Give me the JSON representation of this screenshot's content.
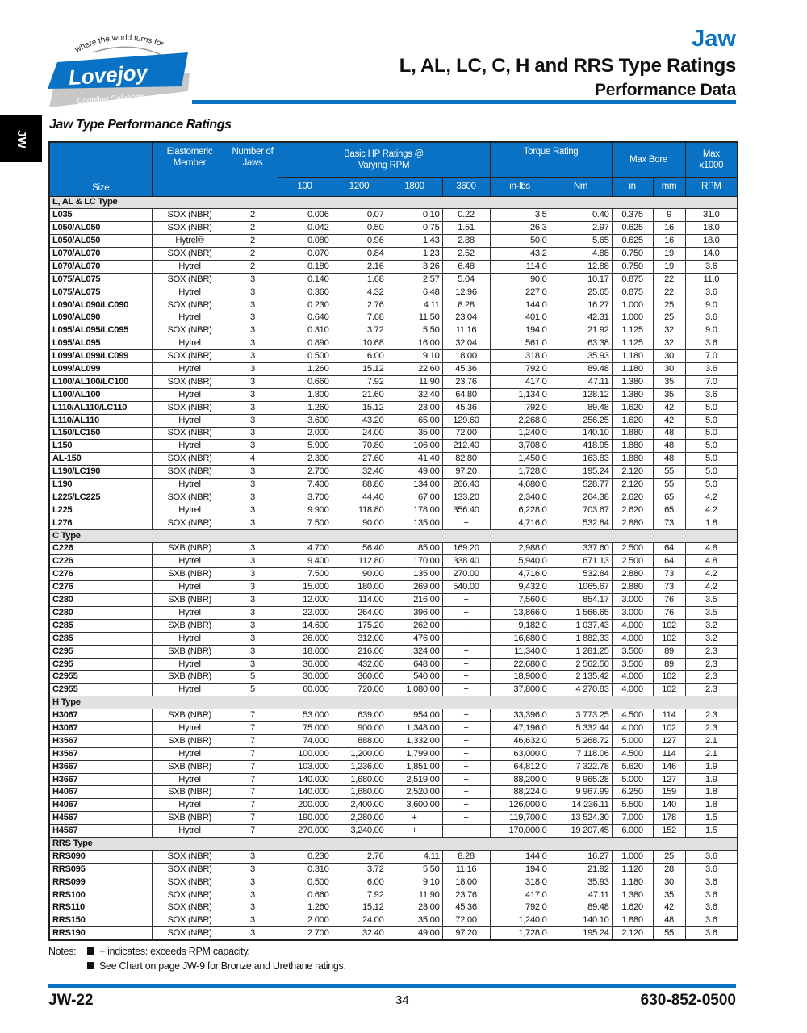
{
  "header": {
    "logo": {
      "tagline": "where the world turns for",
      "brand": "Lovejoy",
      "subtitle": "Coupling Solutions"
    },
    "category": "Jaw",
    "title": "L, AL, LC, C, H and RRS Type Ratings",
    "subtitle": "Performance Data",
    "side_tab": "JW",
    "accent_color": "#0a72c4"
  },
  "section_title": "Jaw Type Performance Ratings",
  "table": {
    "headers": {
      "size": "Size",
      "elastomeric": "Elastomeric Member",
      "jaws": "Number of Jaws",
      "hp": "Basic HP Ratings @ Varying RPM",
      "hp_rpm": [
        "100",
        "1200",
        "1800",
        "3600"
      ],
      "torque": "Torque Rating",
      "torque_units": [
        "in-lbs",
        "Nm"
      ],
      "bore": "Max Bore",
      "bore_units": [
        "in",
        "mm"
      ],
      "rpm": "Max x1000",
      "rpm_unit": "RPM"
    },
    "sections": [
      {
        "name": "L, AL & LC Type",
        "rows": [
          [
            "L035",
            "SOX (NBR)",
            "2",
            "0.006",
            "0.07",
            "0.10",
            "0.22",
            "3.5",
            "0.40",
            "0.375",
            "9",
            "31.0"
          ],
          [
            "L050/AL050",
            "SOX (NBR)",
            "2",
            "0.042",
            "0.50",
            "0.75",
            "1.51",
            "26.3",
            "2.97",
            "0.625",
            "16",
            "18.0"
          ],
          [
            "L050/AL050",
            "Hytrel®",
            "2",
            "0.080",
            "0.96",
            "1.43",
            "2.88",
            "50.0",
            "5.65",
            "0.625",
            "16",
            "18.0"
          ],
          [
            "L070/AL070",
            "SOX (NBR)",
            "2",
            "0.070",
            "0.84",
            "1.23",
            "2.52",
            "43.2",
            "4.88",
            "0.750",
            "19",
            "14.0"
          ],
          [
            "L070/AL070",
            "Hytrel",
            "2",
            "0.180",
            "2.16",
            "3.26",
            "6.48",
            "114.0",
            "12.88",
            "0.750",
            "19",
            "3.6"
          ],
          [
            "L075/AL075",
            "SOX (NBR)",
            "3",
            "0.140",
            "1.68",
            "2.57",
            "5.04",
            "90.0",
            "10.17",
            "0.875",
            "22",
            "11.0"
          ],
          [
            "L075/AL075",
            "Hytrel",
            "3",
            "0.360",
            "4.32",
            "6.48",
            "12.96",
            "227.0",
            "25.65",
            "0.875",
            "22",
            "3.6"
          ],
          [
            "L090/AL090/LC090",
            "SOX (NBR)",
            "3",
            "0.230",
            "2.76",
            "4.11",
            "8.28",
            "144.0",
            "16.27",
            "1.000",
            "25",
            "9.0"
          ],
          [
            "L090/AL090",
            "Hytrel",
            "3",
            "0.640",
            "7.68",
            "11.50",
            "23.04",
            "401.0",
            "42.31",
            "1.000",
            "25",
            "3.6"
          ],
          [
            "L095/AL095/LC095",
            "SOX (NBR)",
            "3",
            "0.310",
            "3.72",
            "5.50",
            "11.16",
            "194.0",
            "21.92",
            "1.125",
            "32",
            "9.0"
          ],
          [
            "L095/AL095",
            "Hytrel",
            "3",
            "0.890",
            "10.68",
            "16.00",
            "32.04",
            "561.0",
            "63.38",
            "1.125",
            "32",
            "3.6"
          ],
          [
            "L099/AL099/LC099",
            "SOX (NBR)",
            "3",
            "0.500",
            "6.00",
            "9.10",
            "18.00",
            "318.0",
            "35.93",
            "1.180",
            "30",
            "7.0"
          ],
          [
            "L099/AL099",
            "Hytrel",
            "3",
            "1.260",
            "15.12",
            "22.60",
            "45.36",
            "792.0",
            "89.48",
            "1.180",
            "30",
            "3.6"
          ],
          [
            "L100/AL100/LC100",
            "SOX (NBR)",
            "3",
            "0.660",
            "7.92",
            "11.90",
            "23.76",
            "417.0",
            "47.11",
            "1.380",
            "35",
            "7.0"
          ],
          [
            "L100/AL100",
            "Hytrel",
            "3",
            "1.800",
            "21.60",
            "32.40",
            "64.80",
            "1,134.0",
            "128.12",
            "1.380",
            "35",
            "3.6"
          ],
          [
            "L110/AL110/LC110",
            "SOX (NBR)",
            "3",
            "1.260",
            "15.12",
            "23.00",
            "45.36",
            "792.0",
            "89.48",
            "1.620",
            "42",
            "5.0"
          ],
          [
            "L110/AL110",
            "Hytrel",
            "3",
            "3.600",
            "43.20",
            "65.00",
            "129.60",
            "2,268.0",
            "256.25",
            "1.620",
            "42",
            "5.0"
          ],
          [
            "L150/LC150",
            "SOX (NBR)",
            "3",
            "2.000",
            "24.00",
            "35.00",
            "72.00",
            "1,240.0",
            "140.10",
            "1.880",
            "48",
            "5.0"
          ],
          [
            "L150",
            "Hytrel",
            "3",
            "5.900",
            "70.80",
            "106.00",
            "212.40",
            "3,708.0",
            "418.95",
            "1.880",
            "48",
            "5.0"
          ],
          [
            "AL-150",
            "SOX (NBR)",
            "4",
            "2.300",
            "27.60",
            "41.40",
            "82.80",
            "1,450.0",
            "163.83",
            "1.880",
            "48",
            "5.0"
          ],
          [
            "L190/LC190",
            "SOX (NBR)",
            "3",
            "2.700",
            "32.40",
            "49.00",
            "97.20",
            "1,728.0",
            "195.24",
            "2.120",
            "55",
            "5.0"
          ],
          [
            "L190",
            "Hytrel",
            "3",
            "7.400",
            "88.80",
            "134.00",
            "266.40",
            "4,680.0",
            "528.77",
            "2.120",
            "55",
            "5.0"
          ],
          [
            "L225/LC225",
            "SOX (NBR)",
            "3",
            "3.700",
            "44.40",
            "67.00",
            "133.20",
            "2,340.0",
            "264.38",
            "2.620",
            "65",
            "4.2"
          ],
          [
            "L225",
            "Hytrel",
            "3",
            "9.900",
            "118.80",
            "178.00",
            "356.40",
            "6,228.0",
            "703.67",
            "2.620",
            "65",
            "4.2"
          ],
          [
            "L276",
            "SOX (NBR)",
            "3",
            "7.500",
            "90.00",
            "135.00",
            "+",
            "4,716.0",
            "532.84",
            "2.880",
            "73",
            "1.8"
          ]
        ]
      },
      {
        "name": "C Type",
        "rows": [
          [
            "C226",
            "SXB (NBR)",
            "3",
            "4.700",
            "56.40",
            "85.00",
            "169.20",
            "2,988.0",
            "337.60",
            "2.500",
            "64",
            "4.8"
          ],
          [
            "C226",
            "Hytrel",
            "3",
            "9.400",
            "112.80",
            "170.00",
            "338.40",
            "5,940.0",
            "671.13",
            "2.500",
            "64",
            "4.8"
          ],
          [
            "C276",
            "SXB (NBR)",
            "3",
            "7.500",
            "90.00",
            "135.00",
            "270.00",
            "4,716.0",
            "532.84",
            "2.880",
            "73",
            "4.2"
          ],
          [
            "C276",
            "Hytrel",
            "3",
            "15.000",
            "180.00",
            "269.00",
            "540.00",
            "9,432.0",
            "1065.67",
            "2.880",
            "73",
            "4.2"
          ],
          [
            "C280",
            "SXB (NBR)",
            "3",
            "12.000",
            "114.00",
            "216.00",
            "+",
            "7,560.0",
            "854.17",
            "3.000",
            "76",
            "3.5"
          ],
          [
            "C280",
            "Hytrel",
            "3",
            "22.000",
            "264.00",
            "396.00",
            "+",
            "13,866.0",
            "1 566.65",
            "3.000",
            "76",
            "3.5"
          ],
          [
            "C285",
            "SXB (NBR)",
            "3",
            "14.600",
            "175.20",
            "262.00",
            "+",
            "9,182.0",
            "1 037.43",
            "4.000",
            "102",
            "3.2"
          ],
          [
            "C285",
            "Hytrel",
            "3",
            "26.000",
            "312.00",
            "476.00",
            "+",
            "16,680.0",
            "1 882.33",
            "4.000",
            "102",
            "3.2"
          ],
          [
            "C295",
            "SXB (NBR)",
            "3",
            "18.000",
            "216.00",
            "324.00",
            "+",
            "11,340.0",
            "1 281.25",
            "3.500",
            "89",
            "2.3"
          ],
          [
            "C295",
            "Hytrel",
            "3",
            "36.000",
            "432.00",
            "648.00",
            "+",
            "22,680.0",
            "2 562.50",
            "3.500",
            "89",
            "2.3"
          ],
          [
            "C2955",
            "SXB (NBR)",
            "5",
            "30.000",
            "360.00",
            "540.00",
            "+",
            "18,900.0",
            "2 135.42",
            "4.000",
            "102",
            "2.3"
          ],
          [
            "C2955",
            "Hytrel",
            "5",
            "60.000",
            "720.00",
            "1,080.00",
            "+",
            "37,800.0",
            "4 270.83",
            "4.000",
            "102",
            "2.3"
          ]
        ]
      },
      {
        "name": "H Type",
        "rows": [
          [
            "H3067",
            "SXB (NBR)",
            "7",
            "53.000",
            "639.00",
            "954.00",
            "+",
            "33,396.0",
            "3 773.25",
            "4.500",
            "114",
            "2.3"
          ],
          [
            "H3067",
            "Hytrel",
            "7",
            "75.000",
            "900.00",
            "1,348.00",
            "+",
            "47,196.0",
            "5 332.44",
            "4.000",
            "102",
            "2.3"
          ],
          [
            "H3567",
            "SXB (NBR)",
            "7",
            "74.000",
            "888.00",
            "1,332.00",
            "+",
            "46,632.0",
            "5 268.72",
            "5.000",
            "127",
            "2.1"
          ],
          [
            "H3567",
            "Hytrel",
            "7",
            "100.000",
            "1,200.00",
            "1,799.00",
            "+",
            "63,000.0",
            "7 118.06",
            "4.500",
            "114",
            "2.1"
          ],
          [
            "H3667",
            "SXB (NBR)",
            "7",
            "103.000",
            "1,236.00",
            "1,851.00",
            "+",
            "64,812.0",
            "7 322.78",
            "5.620",
            "146",
            "1.9"
          ],
          [
            "H3667",
            "Hytrel",
            "7",
            "140.000",
            "1,680.00",
            "2,519.00",
            "+",
            "88,200.0",
            "9 965.28",
            "5.000",
            "127",
            "1.9"
          ],
          [
            "H4067",
            "SXB (NBR)",
            "7",
            "140.000",
            "1,680.00",
            "2,520.00",
            "+",
            "88,224.0",
            "9 967.99",
            "6.250",
            "159",
            "1.8"
          ],
          [
            "H4067",
            "Hytrel",
            "7",
            "200.000",
            "2,400.00",
            "3,600.00",
            "+",
            "126,000.0",
            "14 236.11",
            "5.500",
            "140",
            "1.8"
          ],
          [
            "H4567",
            "SXB (NBR)",
            "7",
            "190.000",
            "2,280.00",
            "+",
            "+",
            "119,700.0",
            "13 524.30",
            "7.000",
            "178",
            "1.5"
          ],
          [
            "H4567",
            "Hytrel",
            "7",
            "270.000",
            "3,240.00",
            "+",
            "+",
            "170,000.0",
            "19 207.45",
            "6.000",
            "152",
            "1.5"
          ]
        ]
      },
      {
        "name": "RRS Type",
        "rows": [
          [
            "RRS090",
            "SOX (NBR)",
            "3",
            "0.230",
            "2.76",
            "4.11",
            "8.28",
            "144.0",
            "16.27",
            "1.000",
            "25",
            "3.6"
          ],
          [
            "RRS095",
            "SOX (NBR)",
            "3",
            "0.310",
            "3.72",
            "5.50",
            "11.16",
            "194.0",
            "21.92",
            "1.120",
            "28",
            "3.6"
          ],
          [
            "RRS099",
            "SOX (NBR)",
            "3",
            "0.500",
            "6.00",
            "9.10",
            "18.00",
            "318.0",
            "35.93",
            "1.180",
            "30",
            "3.6"
          ],
          [
            "RRS100",
            "SOX (NBR)",
            "3",
            "0.660",
            "7.92",
            "11.90",
            "23.76",
            "417.0",
            "47.11",
            "1.380",
            "35",
            "3.6"
          ],
          [
            "RRS110",
            "SOX (NBR)",
            "3",
            "1.260",
            "15.12",
            "23.00",
            "45.36",
            "792.0",
            "89.48",
            "1.620",
            "42",
            "3.6"
          ],
          [
            "RRS150",
            "SOX (NBR)",
            "3",
            "2.000",
            "24.00",
            "35.00",
            "72.00",
            "1,240.0",
            "140.10",
            "1.880",
            "48",
            "3.6"
          ],
          [
            "RRS190",
            "SOX (NBR)",
            "3",
            "2.700",
            "32.40",
            "49.00",
            "97.20",
            "1,728.0",
            "195.24",
            "2.120",
            "55",
            "3.6"
          ]
        ]
      }
    ]
  },
  "notes": {
    "label": "Notes:",
    "items": [
      "+ indicates: exceeds RPM capacity.",
      "See Chart on page JW-9 for Bronze and Urethane ratings."
    ]
  },
  "footer": {
    "page_code": "JW-22",
    "page_number": "34",
    "phone": "630-852-0500"
  }
}
